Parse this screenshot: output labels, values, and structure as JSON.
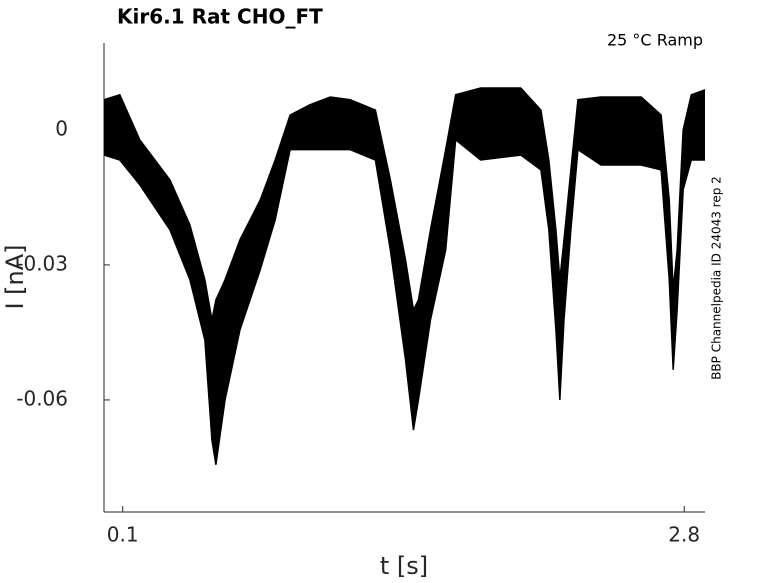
{
  "chart_data": {
    "type": "band",
    "title": "Kir6.1  Rat  CHO_FT",
    "subtitle": "25 °C  Ramp",
    "annotation": "BBP Channelpedia ID 24043 rep 2",
    "xlabel": "t [s]",
    "ylabel": "I [nA]",
    "xlim": [
      0.01,
      2.9
    ],
    "ylim": [
      -0.0849,
      0.0193
    ],
    "xticks": [
      0.1,
      2.8
    ],
    "yticks": [
      -0.06,
      -0.03,
      0
    ],
    "grid": false,
    "x": [
      0.01,
      0.086,
      0.182,
      0.327,
      0.423,
      0.495,
      0.529,
      0.548,
      0.592,
      0.664,
      0.761,
      0.833,
      0.905,
      1.001,
      1.098,
      1.194,
      1.315,
      1.387,
      1.46,
      1.498,
      1.522,
      1.58,
      1.653,
      1.701,
      1.821,
      2.014,
      2.111,
      2.149,
      2.183,
      2.202,
      2.222,
      2.255,
      2.289,
      2.4,
      2.593,
      2.689,
      2.728,
      2.747,
      2.766,
      2.795,
      2.834,
      2.9
    ],
    "series": [
      {
        "color": "#000000",
        "values": [
          0.0067,
          0.0078,
          -0.0022,
          -0.0111,
          -0.0211,
          -0.0333,
          -0.0422,
          -0.0378,
          -0.0333,
          -0.0244,
          -0.0156,
          -0.0067,
          0.0033,
          0.0056,
          0.0073,
          0.0067,
          0.0044,
          -0.0111,
          -0.0289,
          -0.04,
          -0.0378,
          -0.0222,
          -0.0044,
          0.0078,
          0.0093,
          0.0093,
          0.0044,
          -0.0067,
          -0.0222,
          -0.0333,
          -0.0244,
          -0.0089,
          0.0067,
          0.0073,
          0.0073,
          0.0033,
          -0.0156,
          -0.0356,
          -0.0267,
          0,
          0.0078,
          0.0089
        ]
      },
      {
        "color": "#000000",
        "values": [
          -0.0056,
          -0.0067,
          -0.0122,
          -0.0222,
          -0.0333,
          -0.0467,
          -0.0689,
          -0.0744,
          -0.06,
          -0.0444,
          -0.0311,
          -0.02,
          -0.0044,
          -0.0044,
          -0.0044,
          -0.0044,
          -0.0067,
          -0.0267,
          -0.0511,
          -0.0667,
          -0.06,
          -0.0422,
          -0.0267,
          -0.0022,
          -0.0067,
          -0.0056,
          -0.0089,
          -0.0222,
          -0.0444,
          -0.06,
          -0.0422,
          -0.0222,
          -0.0044,
          -0.0078,
          -0.0078,
          -0.0089,
          -0.0333,
          -0.0533,
          -0.04,
          -0.0133,
          -0.0067,
          -0.0067
        ]
      }
    ]
  }
}
